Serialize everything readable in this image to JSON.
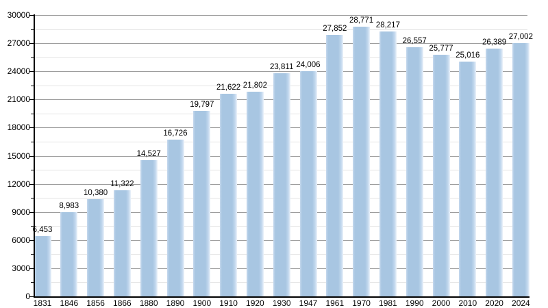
{
  "chart_data": {
    "type": "bar",
    "title": "",
    "xlabel": "",
    "ylabel": "",
    "categories": [
      "1831",
      "1846",
      "1856",
      "1866",
      "1880",
      "1890",
      "1900",
      "1910",
      "1920",
      "1930",
      "1947",
      "1961",
      "1970",
      "1981",
      "1990",
      "2000",
      "2010",
      "2020",
      "2024"
    ],
    "values": [
      6453,
      8983,
      10380,
      11322,
      14527,
      16726,
      19797,
      21622,
      21802,
      23811,
      24006,
      27852,
      28771,
      28217,
      26557,
      25777,
      25016,
      26389,
      27002
    ],
    "value_labels": [
      "6,453",
      "8,983",
      "10,380",
      "11,322",
      "14,527",
      "16,726",
      "19,797",
      "21,622",
      "21,802",
      "23,811",
      "24,006",
      "27,852",
      "28,771",
      "28,217",
      "26,557",
      "25,777",
      "25,016",
      "26,389",
      "27,002"
    ],
    "ylim": [
      0,
      30000
    ],
    "y_major_step": 3000,
    "y_minor_step": 1500,
    "y_tick_labels": [
      "0",
      "3000",
      "6000",
      "9000",
      "12000",
      "15000",
      "18000",
      "21000",
      "24000",
      "27000",
      "30000"
    ],
    "grid": "major+minor horizontal",
    "legend": "none",
    "colors": {
      "bar_fill": "#a8c6e2",
      "bar_fade": "#ecf2fa",
      "grid_major": "#9d9d9d",
      "grid_minor": "#e3e3e3",
      "axis": "#000000",
      "text": "#000000",
      "background": "#ffffff"
    }
  }
}
